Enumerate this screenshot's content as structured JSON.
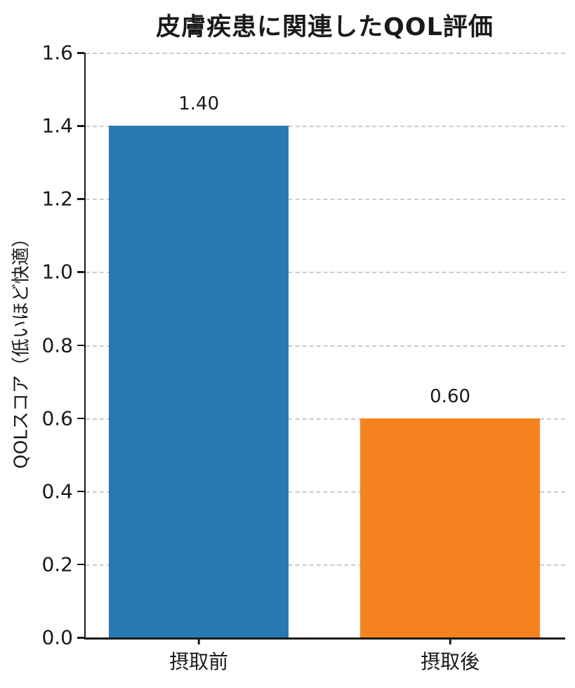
{
  "chart_data": {
    "type": "bar",
    "title": "皮膚疾患に関連したQOL評価",
    "categories": [
      "摂取前",
      "摂取後"
    ],
    "values": [
      1.4,
      0.6
    ],
    "value_labels": [
      "1.40",
      "0.60"
    ],
    "bar_colors": [
      "#2878b4",
      "#f5821e"
    ],
    "xlabel": "",
    "ylabel": "QOLスコア（低いほど快適）",
    "ylim": [
      0,
      1.6
    ],
    "yticks": [
      0.0,
      0.2,
      0.4,
      0.6,
      0.8,
      1.0,
      1.2,
      1.4,
      1.6
    ],
    "ytick_labels": [
      "0.0",
      "0.2",
      "0.4",
      "0.6",
      "0.8",
      "1.0",
      "1.2",
      "1.4",
      "1.6"
    ],
    "grid": "horizontal-dashed",
    "legend": "none",
    "layout": {
      "bar_centers_frac": [
        0.236,
        0.76
      ],
      "bar_width_frac": 0.375
    }
  },
  "colors": {
    "text": "#1a1a1a",
    "spine": "#1a1a1a",
    "grid": "#cccccc",
    "background": "#ffffff"
  }
}
